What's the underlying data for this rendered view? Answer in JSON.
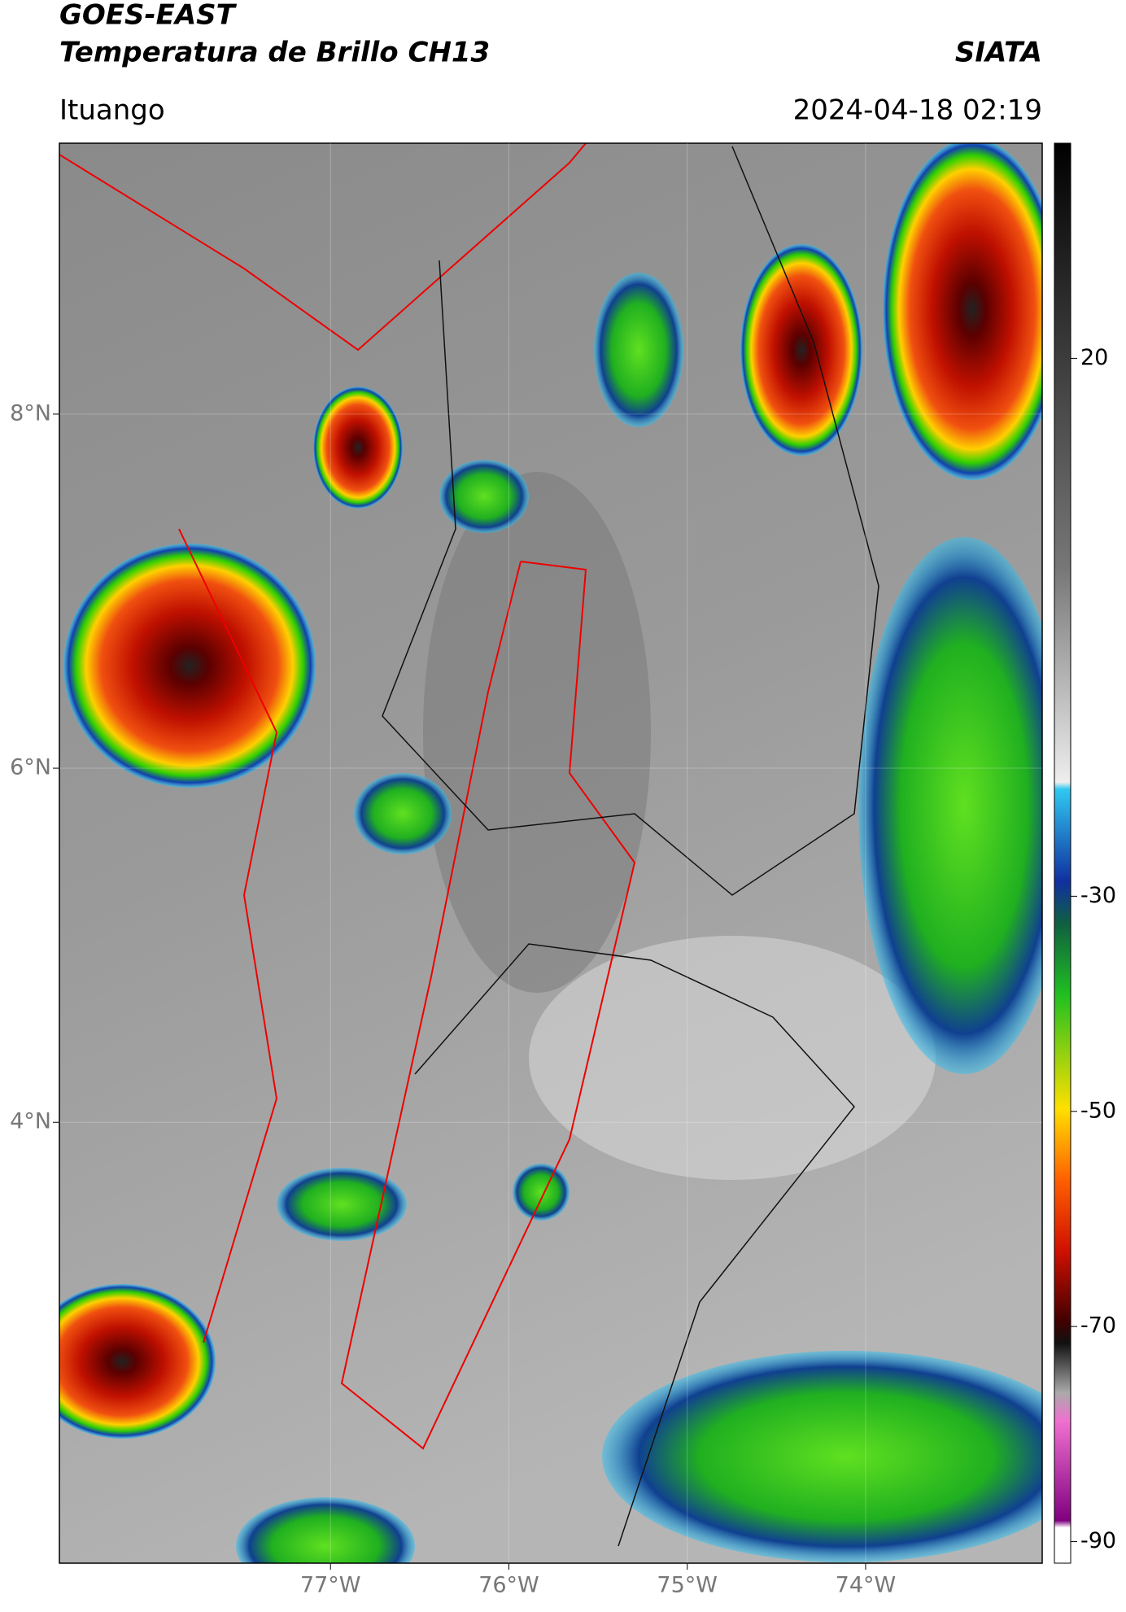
{
  "header": {
    "title": "GOES-EAST",
    "subtitle": "Temperatura de Brillo CH13",
    "source": "SIATA",
    "location": "Ituango",
    "datetime": "2024-04-18 02:19"
  },
  "map": {
    "lat_range": [
      1.51,
      9.53
    ],
    "lon_range": [
      -78.52,
      -73.01
    ],
    "lat_ticks": [
      {
        "value": 8,
        "label": "8°N"
      },
      {
        "value": 6,
        "label": "6°N"
      },
      {
        "value": 4,
        "label": "4°N"
      }
    ],
    "lon_ticks": [
      {
        "value": -77,
        "label": "77°W"
      },
      {
        "value": -76,
        "label": "76°W"
      },
      {
        "value": -75,
        "label": "75°W"
      },
      {
        "value": -74,
        "label": "74°W"
      }
    ]
  },
  "colorbar": {
    "range": [
      -92,
      40
    ],
    "ticks": [
      20,
      -30,
      -50,
      -70,
      -90
    ]
  }
}
